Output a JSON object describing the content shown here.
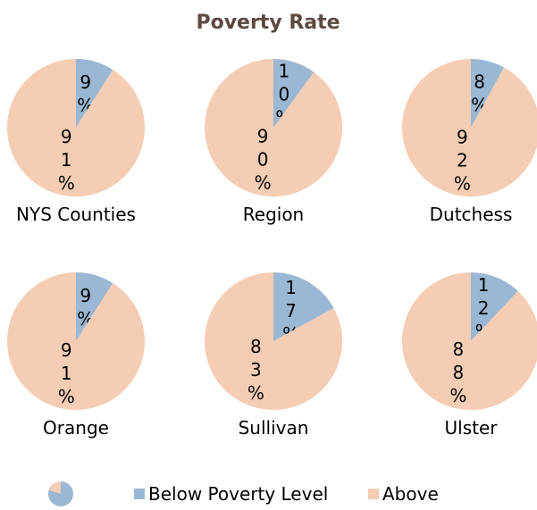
{
  "title": "Poverty Rate",
  "chart_data": [
    {
      "type": "pie",
      "title": "NYS Counties",
      "categories": [
        "Below Poverty Level",
        "Above"
      ],
      "values": [
        9,
        91
      ],
      "value_labels": [
        "9%",
        "91%"
      ],
      "colors": [
        "#9ab7d3",
        "#f4cdb4"
      ]
    },
    {
      "type": "pie",
      "title": "Region",
      "categories": [
        "Below Poverty Level",
        "Above"
      ],
      "values": [
        10,
        90
      ],
      "value_labels": [
        "10%",
        "90%"
      ],
      "colors": [
        "#9ab7d3",
        "#f4cdb4"
      ]
    },
    {
      "type": "pie",
      "title": "Dutchess",
      "categories": [
        "Below Poverty Level",
        "Above"
      ],
      "values": [
        8,
        92
      ],
      "value_labels": [
        "8%",
        "92%"
      ],
      "colors": [
        "#9ab7d3",
        "#f4cdb4"
      ]
    },
    {
      "type": "pie",
      "title": "Orange",
      "categories": [
        "Below Poverty Level",
        "Above"
      ],
      "values": [
        9,
        91
      ],
      "value_labels": [
        "9%",
        "91%"
      ],
      "colors": [
        "#9ab7d3",
        "#f4cdb4"
      ]
    },
    {
      "type": "pie",
      "title": "Sullivan",
      "categories": [
        "Below Poverty Level",
        "Above"
      ],
      "values": [
        17,
        83
      ],
      "value_labels": [
        "17%",
        "83%"
      ],
      "colors": [
        "#9ab7d3",
        "#f4cdb4"
      ]
    },
    {
      "type": "pie",
      "title": "Ulster",
      "categories": [
        "Below Poverty Level",
        "Above"
      ],
      "values": [
        12,
        88
      ],
      "value_labels": [
        "12%",
        "88%"
      ],
      "colors": [
        "#9ab7d3",
        "#f4cdb4"
      ]
    }
  ]
}
